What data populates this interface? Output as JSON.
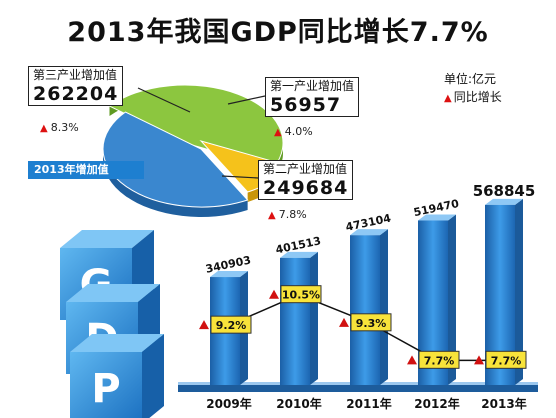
{
  "title": "2013年我国GDP同比增长7.7%",
  "legend": {
    "unit": "单位:亿元",
    "growth": "同比增长"
  },
  "pie_label": "2013年增加值",
  "cube_letters": [
    "G",
    "D",
    "P"
  ],
  "callouts": {
    "tertiary": {
      "label": "第三产业增加值",
      "value": "262204",
      "growth": "8.3%"
    },
    "primary": {
      "label": "第一产业增加值",
      "value": "56957",
      "growth": "4.0%"
    },
    "secondary": {
      "label": "第二产业增加值",
      "value": "249684",
      "growth": "7.8%"
    }
  },
  "colors": {
    "tertiary": "#8cc63f",
    "primary": "#f5c21b",
    "secondary": "#3a87cf",
    "bar": "#2a82d6",
    "growth_marker": "#d11111",
    "ribbon": "#1e7fd0"
  },
  "chart_data": [
    {
      "type": "pie",
      "categories": [
        "第三产业增加值",
        "第一产业增加值",
        "第二产业增加值"
      ],
      "values": [
        262204,
        56957,
        249684
      ],
      "growth": [
        "8.3%",
        "4.0%",
        "7.8%"
      ]
    },
    {
      "type": "bar",
      "categories": [
        "2009年",
        "2010年",
        "2011年",
        "2012年",
        "2013年"
      ],
      "series": [
        {
          "values": [
            340903,
            401513,
            473104,
            519470,
            568845
          ]
        },
        {
          "name": "同比增长",
          "type": "line",
          "values": [
            9.2,
            10.5,
            9.3,
            7.7,
            7.7
          ],
          "labels": [
            "9.2%",
            "10.5%",
            "9.3%",
            "7.7%",
            "7.7%"
          ]
        }
      ],
      "value_labels": [
        "340903",
        "401513",
        "473104",
        "519470",
        "568845"
      ]
    }
  ]
}
